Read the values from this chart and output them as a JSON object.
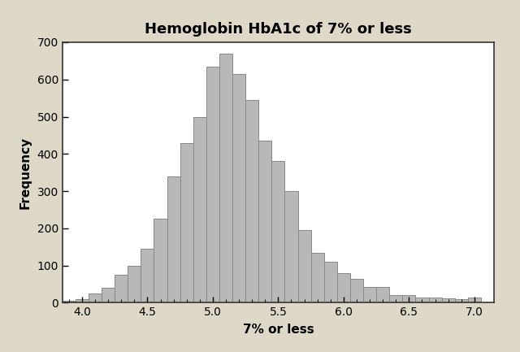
{
  "title": "Hemoglobin HbA1c of 7% or less",
  "xlabel": "7% or less",
  "ylabel": "Frequency",
  "bar_color": "#b8b8b8",
  "bar_edge_color": "#888888",
  "background_outer": "#ddd8c8",
  "background_plot": "#ffffff",
  "xlim": [
    3.85,
    7.15
  ],
  "ylim": [
    0,
    700
  ],
  "xticks": [
    4.0,
    4.5,
    5.0,
    5.5,
    6.0,
    6.5,
    7.0
  ],
  "yticks": [
    0,
    100,
    200,
    300,
    400,
    500,
    600,
    700
  ],
  "bin_width": 0.1,
  "bin_centers": [
    3.9,
    4.0,
    4.1,
    4.2,
    4.3,
    4.4,
    4.5,
    4.6,
    4.7,
    4.8,
    4.9,
    5.0,
    5.1,
    5.2,
    5.3,
    5.4,
    5.5,
    5.6,
    5.7,
    5.8,
    5.9,
    6.0,
    6.1,
    6.2,
    6.3,
    6.4,
    6.5,
    6.6,
    6.7,
    6.8,
    6.9,
    7.0
  ],
  "frequencies": [
    5,
    10,
    25,
    40,
    75,
    100,
    145,
    225,
    340,
    430,
    500,
    635,
    670,
    615,
    545,
    435,
    380,
    300,
    195,
    135,
    110,
    80,
    65,
    42,
    42,
    20,
    20,
    15,
    15,
    12,
    10,
    15
  ],
  "title_fontsize": 13,
  "label_fontsize": 11,
  "tick_fontsize": 10
}
